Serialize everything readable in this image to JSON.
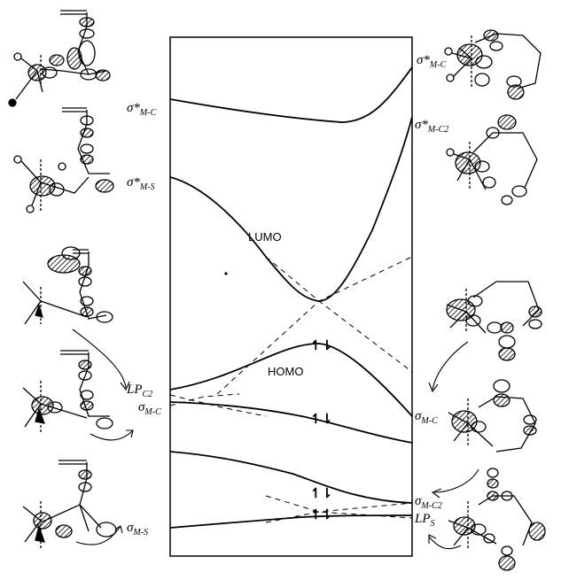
{
  "diagram": {
    "center_labels": {
      "lumo": "LUMO",
      "homo": "HOMO"
    },
    "left_labels": [
      {
        "id": "sigma-star-mc-left",
        "main": "σ*",
        "sub": "M-C"
      },
      {
        "id": "sigma-star-ms-left",
        "main": "σ*",
        "sub": "M-S"
      },
      {
        "id": "lp-c2-left",
        "main": "LP",
        "sub": "C2"
      },
      {
        "id": "sigma-mc-left",
        "main": "σ",
        "sub": "M-C"
      },
      {
        "id": "sigma-ms-left",
        "main": "σ",
        "sub": "M-S"
      }
    ],
    "right_labels": [
      {
        "id": "sigma-star-mc-right",
        "main": "σ*",
        "sub": "M-C"
      },
      {
        "id": "sigma-star-mc2-right",
        "main": "σ*",
        "sub": "M-C2"
      },
      {
        "id": "sigma-mc-right",
        "main": "σ",
        "sub": "M-C"
      },
      {
        "id": "sigma-mc2-right",
        "main": "σ",
        "sub": "M-C2"
      },
      {
        "id": "lp-s-right",
        "main": "LP",
        "sub": "S"
      }
    ],
    "electron_pair_symbol": "↿⇂"
  },
  "colors": {
    "line": "#000000",
    "hatch": "#000000",
    "background": "#ffffff"
  }
}
